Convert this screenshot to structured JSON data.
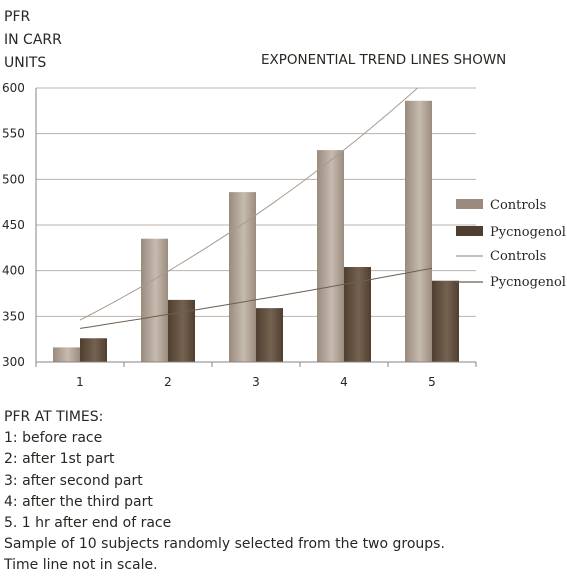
{
  "y_axis_label": [
    "PFR",
    "IN CARR",
    "UNITS"
  ],
  "subtitle": "EXPONENTIAL TREND LINES SHOWN",
  "chart_data": {
    "type": "bar",
    "categories": [
      "1",
      "2",
      "3",
      "4",
      "5"
    ],
    "series": [
      {
        "name": "Controls",
        "values": [
          316,
          435,
          486,
          532,
          586
        ],
        "color": "#9a8b7e"
      },
      {
        "name": "Pycnogenol",
        "values": [
          326,
          368,
          359,
          404,
          389
        ],
        "color": "#4f3f31"
      }
    ],
    "trendlines": [
      {
        "name": "Controls",
        "type": "exponential",
        "color": "#a89a8e"
      },
      {
        "name": "Pycnogenol",
        "type": "exponential",
        "color": "#6e5e50"
      }
    ],
    "yticks": [
      "300",
      "350",
      "400",
      "450",
      "500",
      "550",
      "600"
    ],
    "ylim": [
      300,
      600
    ],
    "grid": true,
    "legend_position": "right"
  },
  "notes": [
    "PFR AT TIMES:",
    "1: before race",
    "2: after 1st part",
    "3: after second part",
    "4: after the third part",
    "5. 1 hr after end of race",
    "Sample of 10 subjects randomly selected from the two groups.",
    "Time line not in scale."
  ]
}
